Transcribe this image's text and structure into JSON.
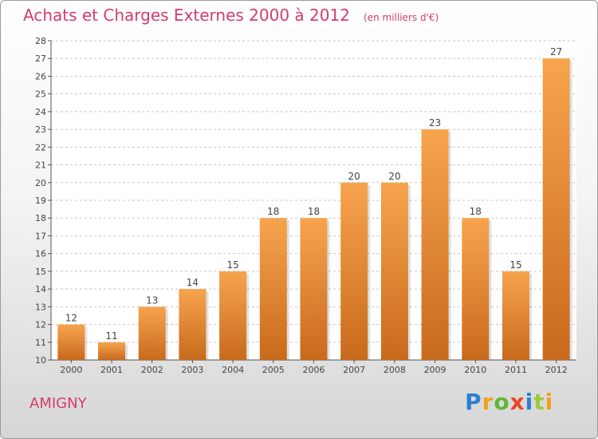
{
  "title": "Achats et Charges Externes 2000 à 2012",
  "unit": "(en milliers d'€)",
  "commune": "AMIGNY",
  "brand": [
    "P",
    "r",
    "o",
    "x",
    "i",
    "t",
    "i"
  ],
  "colors": {
    "title": "#d43d6b",
    "bar_light": "#f7a44e",
    "bar_dark": "#c86a1c",
    "grid": "#c8c8c8",
    "axis": "#555555"
  },
  "chart_data": {
    "type": "bar",
    "categories": [
      "2000",
      "2001",
      "2002",
      "2003",
      "2004",
      "2005",
      "2006",
      "2007",
      "2008",
      "2009",
      "2010",
      "2011",
      "2012"
    ],
    "values": [
      12,
      11,
      13,
      14,
      15,
      18,
      18,
      20,
      20,
      23,
      18,
      15,
      27
    ],
    "title": "Achats et Charges Externes 2000 à 2012",
    "ylim": [
      10,
      28
    ],
    "yticks": [
      10,
      11,
      12,
      13,
      14,
      15,
      16,
      17,
      18,
      19,
      20,
      21,
      22,
      23,
      24,
      25,
      26,
      27,
      28
    ],
    "grid": true,
    "data_labels": true
  }
}
